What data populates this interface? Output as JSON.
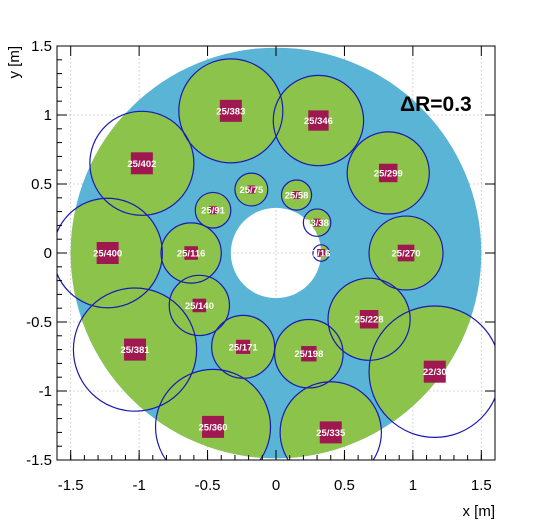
{
  "chart_data": {
    "type": "scatter",
    "title": "",
    "xlabel": "x [m]",
    "ylabel": "y [m]",
    "xlim": [
      -1.6,
      1.6
    ],
    "ylim": [
      -1.5,
      1.5
    ],
    "grid": true,
    "xticks": [
      -1.5,
      -1,
      -0.5,
      0,
      0.5,
      1,
      1.5
    ],
    "xtick_labels": [
      "-1.5",
      "-1",
      "-0.5",
      "0",
      "0.5",
      "1",
      "1.5"
    ],
    "yticks": [
      -1.5,
      -1,
      -0.5,
      0,
      0.5,
      1,
      1.5
    ],
    "ytick_labels": [
      "-1.5",
      "-1",
      "-0.5",
      "0",
      "0.5",
      "1",
      "1.5"
    ],
    "annotation": "ΔR=0.3",
    "colors": {
      "detector": "#5ab4d6",
      "cluster_fill": "#8cc34a",
      "cluster_circle": "#1a1ab4",
      "seed": "#a01850"
    },
    "detector_region": {
      "r_inner": 0.33,
      "r_outer": 1.5
    },
    "clusters": [
      {
        "label": "25/383",
        "x": -0.33,
        "y": 1.03,
        "r": 0.38
      },
      {
        "label": "25/346",
        "x": 0.31,
        "y": 0.96,
        "r": 0.33
      },
      {
        "label": "25/402",
        "x": -0.98,
        "y": 0.65,
        "r": 0.38
      },
      {
        "label": "25/299",
        "x": 0.82,
        "y": 0.58,
        "r": 0.3
      },
      {
        "label": "25/75",
        "x": -0.18,
        "y": 0.46,
        "r": 0.12
      },
      {
        "label": "25/58",
        "x": 0.15,
        "y": 0.42,
        "r": 0.11
      },
      {
        "label": "25/91",
        "x": -0.46,
        "y": 0.31,
        "r": 0.13
      },
      {
        "label": "23/38",
        "x": 0.3,
        "y": 0.22,
        "r": 0.1
      },
      {
        "label": "25/400",
        "x": -1.23,
        "y": 0.0,
        "r": 0.4
      },
      {
        "label": "25/116",
        "x": -0.62,
        "y": 0.0,
        "r": 0.22
      },
      {
        "label": "7/16",
        "x": 0.33,
        "y": 0.0,
        "r": 0.06
      },
      {
        "label": "25/270",
        "x": 0.95,
        "y": 0.0,
        "r": 0.27
      },
      {
        "label": "25/140",
        "x": -0.56,
        "y": -0.38,
        "r": 0.22
      },
      {
        "label": "25/228",
        "x": 0.68,
        "y": -0.48,
        "r": 0.3
      },
      {
        "label": "25/381",
        "x": -1.03,
        "y": -0.7,
        "r": 0.45
      },
      {
        "label": "25/171",
        "x": -0.24,
        "y": -0.68,
        "r": 0.23
      },
      {
        "label": "25/198",
        "x": 0.24,
        "y": -0.73,
        "r": 0.25
      },
      {
        "label": "22/30",
        "x": 1.16,
        "y": -0.86,
        "r": 0.48
      },
      {
        "label": "25/360",
        "x": -0.46,
        "y": -1.26,
        "r": 0.42
      },
      {
        "label": "25/335",
        "x": 0.4,
        "y": -1.3,
        "r": 0.37
      }
    ]
  }
}
